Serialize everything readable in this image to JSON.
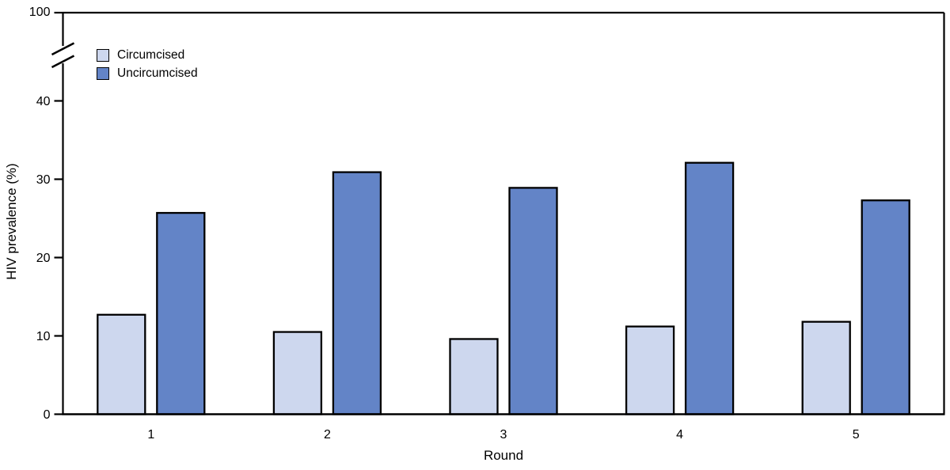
{
  "chart_data": {
    "type": "bar",
    "title": "",
    "xlabel": "Round",
    "ylabel": "HIV prevalence (%)",
    "categories": [
      "1",
      "2",
      "3",
      "4",
      "5"
    ],
    "series": [
      {
        "name": "Circumcised",
        "color": "#cdd7ee",
        "values": [
          12.7,
          10.5,
          9.6,
          11.2,
          11.8
        ]
      },
      {
        "name": "Uncircumcised",
        "color": "#6384c7",
        "values": [
          25.7,
          30.9,
          28.9,
          32.1,
          27.3
        ]
      }
    ],
    "y_axis": {
      "label": "HIV prevalence (%)",
      "linear_ticks": [
        0,
        10,
        20,
        30,
        40
      ],
      "linear_tick_labels": [
        "0",
        "10",
        "20",
        "30",
        "40"
      ],
      "broken_axis": true,
      "break_after": 40,
      "top_tick": 100,
      "top_tick_label": "100",
      "ylim_linear": [
        0,
        42
      ]
    },
    "x_axis": {
      "label": "Round"
    },
    "legend": {
      "position": "top-left",
      "entries": [
        "Circumcised",
        "Uncircumcised"
      ]
    },
    "grid": false,
    "bar_edge_color": "#000000",
    "axis_color": "#000000",
    "text_color": "#000000",
    "background": "#ffffff"
  }
}
